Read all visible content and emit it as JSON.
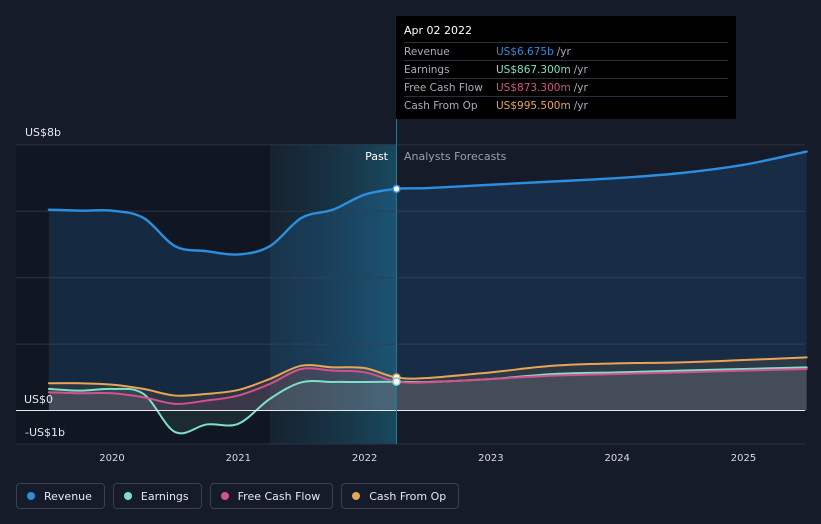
{
  "chart_data": {
    "type": "line",
    "title": "",
    "y_axis": {
      "top_label": "US$8b",
      "zero_label": "US$0",
      "bottom_label": "-US$1b",
      "ylim": [
        -1,
        8
      ]
    },
    "x_ticks": [
      "2020",
      "2021",
      "2022",
      "2023",
      "2024",
      "2025"
    ],
    "regions": {
      "past_label": "Past",
      "forecast_label": "Analysts Forecasts"
    },
    "series": [
      {
        "name": "Revenue",
        "color": "#2b8ee0",
        "points": [
          [
            2019.5,
            6.05
          ],
          [
            2019.75,
            6.02
          ],
          [
            2020.0,
            6.02
          ],
          [
            2020.25,
            5.8
          ],
          [
            2020.5,
            4.95
          ],
          [
            2020.75,
            4.8
          ],
          [
            2021.0,
            4.7
          ],
          [
            2021.25,
            4.95
          ],
          [
            2021.5,
            5.8
          ],
          [
            2021.75,
            6.05
          ],
          [
            2022.0,
            6.5
          ],
          [
            2022.25,
            6.675
          ],
          [
            2022.5,
            6.7
          ],
          [
            2023.0,
            6.8
          ],
          [
            2023.5,
            6.9
          ],
          [
            2024.0,
            7.0
          ],
          [
            2024.5,
            7.15
          ],
          [
            2025.0,
            7.4
          ],
          [
            2025.5,
            7.8
          ]
        ]
      },
      {
        "name": "Earnings",
        "color": "#7ee0c8",
        "points": [
          [
            2019.5,
            0.65
          ],
          [
            2019.75,
            0.6
          ],
          [
            2020.0,
            0.65
          ],
          [
            2020.25,
            0.5
          ],
          [
            2020.5,
            -0.65
          ],
          [
            2020.75,
            -0.42
          ],
          [
            2021.0,
            -0.4
          ],
          [
            2021.25,
            0.35
          ],
          [
            2021.5,
            0.85
          ],
          [
            2021.75,
            0.86
          ],
          [
            2022.0,
            0.86
          ],
          [
            2022.25,
            0.8673
          ],
          [
            2022.5,
            0.86
          ],
          [
            2023.0,
            0.95
          ],
          [
            2023.5,
            1.1
          ],
          [
            2024.0,
            1.15
          ],
          [
            2024.5,
            1.2
          ],
          [
            2025.0,
            1.25
          ],
          [
            2025.5,
            1.3
          ]
        ]
      },
      {
        "name": "Free Cash Flow",
        "color": "#d4518e",
        "points": [
          [
            2019.5,
            0.55
          ],
          [
            2019.75,
            0.52
          ],
          [
            2020.0,
            0.52
          ],
          [
            2020.25,
            0.4
          ],
          [
            2020.5,
            0.2
          ],
          [
            2020.75,
            0.3
          ],
          [
            2021.0,
            0.45
          ],
          [
            2021.25,
            0.8
          ],
          [
            2021.5,
            1.25
          ],
          [
            2021.75,
            1.2
          ],
          [
            2022.0,
            1.15
          ],
          [
            2022.25,
            0.8733
          ],
          [
            2022.5,
            0.85
          ],
          [
            2023.0,
            0.95
          ],
          [
            2023.5,
            1.05
          ],
          [
            2024.0,
            1.1
          ],
          [
            2024.5,
            1.15
          ],
          [
            2025.0,
            1.2
          ],
          [
            2025.5,
            1.25
          ]
        ]
      },
      {
        "name": "Cash From Op",
        "color": "#e9a556",
        "points": [
          [
            2019.5,
            0.82
          ],
          [
            2019.75,
            0.82
          ],
          [
            2020.0,
            0.78
          ],
          [
            2020.25,
            0.65
          ],
          [
            2020.5,
            0.45
          ],
          [
            2020.75,
            0.5
          ],
          [
            2021.0,
            0.62
          ],
          [
            2021.25,
            0.95
          ],
          [
            2021.5,
            1.35
          ],
          [
            2021.75,
            1.3
          ],
          [
            2022.0,
            1.28
          ],
          [
            2022.25,
            0.9955
          ],
          [
            2022.5,
            0.98
          ],
          [
            2023.0,
            1.15
          ],
          [
            2023.5,
            1.35
          ],
          [
            2024.0,
            1.42
          ],
          [
            2024.5,
            1.45
          ],
          [
            2025.0,
            1.52
          ],
          [
            2025.5,
            1.6
          ]
        ]
      }
    ],
    "tooltip": {
      "date": "Apr 02 2022",
      "unit": "/yr",
      "rows": [
        {
          "name": "Revenue",
          "value": "US$6.675b",
          "color": "#2b8ee0"
        },
        {
          "name": "Earnings",
          "value": "US$867.300m",
          "color": "#7ee0c8"
        },
        {
          "name": "Free Cash Flow",
          "value": "US$873.300m",
          "color": "#d4518e"
        },
        {
          "name": "Cash From Op",
          "value": "US$995.500m",
          "color": "#e9a556"
        }
      ]
    },
    "legend": [
      {
        "name": "Revenue",
        "color": "#2b8ee0"
      },
      {
        "name": "Earnings",
        "color": "#7ee0c8"
      },
      {
        "name": "Free Cash Flow",
        "color": "#d4518e"
      },
      {
        "name": "Cash From Op",
        "color": "#e9a556"
      }
    ]
  }
}
